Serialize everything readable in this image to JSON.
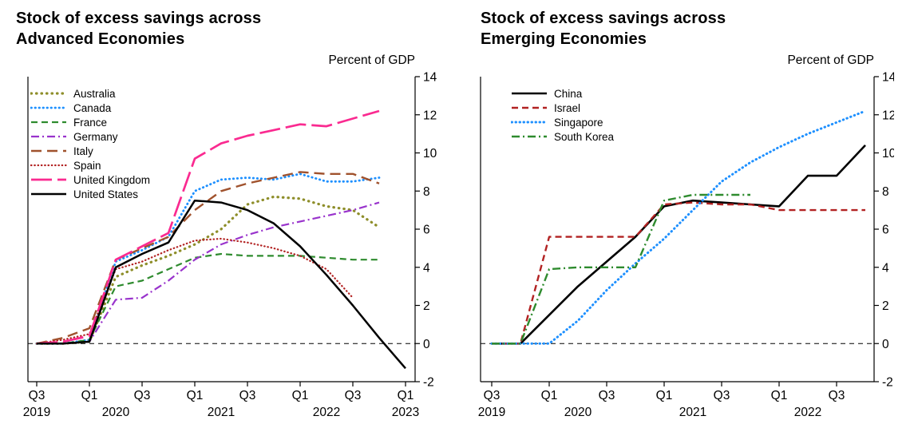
{
  "chart_data": [
    {
      "id": "advanced-economies",
      "type": "line",
      "title_line1": "Stock of excess savings across",
      "title_line2": "Advanced Economies",
      "y_axis_label": "Percent of GDP",
      "ylim": [
        -2,
        14
      ],
      "y_tick_step": 2,
      "grid": false,
      "legend_position": "top-left-inside",
      "zero_line": "dashed",
      "x_quarters": [
        "2019Q3",
        "2019Q4",
        "2020Q1",
        "2020Q2",
        "2020Q3",
        "2020Q4",
        "2021Q1",
        "2021Q2",
        "2021Q3",
        "2021Q4",
        "2022Q1",
        "2022Q2",
        "2022Q3",
        "2022Q4",
        "2023Q1"
      ],
      "x_ticks": [
        {
          "label": "Q3",
          "i": 0
        },
        {
          "label": "Q1",
          "i": 2
        },
        {
          "label": "Q3",
          "i": 4
        },
        {
          "label": "Q1",
          "i": 6
        },
        {
          "label": "Q3",
          "i": 8
        },
        {
          "label": "Q1",
          "i": 10
        },
        {
          "label": "Q3",
          "i": 12
        },
        {
          "label": "Q1",
          "i": 14
        }
      ],
      "year_ticks": [
        {
          "label": "2019",
          "i": 0
        },
        {
          "label": "2020",
          "i": 3
        },
        {
          "label": "2021",
          "i": 7
        },
        {
          "label": "2022",
          "i": 11
        },
        {
          "label": "2023",
          "i": 14
        }
      ],
      "series": [
        {
          "name": "Australia",
          "color": "#8e8e2a",
          "dash": "dotlarge",
          "width": 3.2,
          "start_index": 0,
          "values": [
            0,
            0,
            0.1,
            3.5,
            4.1,
            4.6,
            5.2,
            6.0,
            7.3,
            7.7,
            7.6,
            7.2,
            7.0,
            6.1
          ]
        },
        {
          "name": "Canada",
          "color": "#1e90ff",
          "dash": "dot",
          "width": 2.8,
          "start_index": 0,
          "values": [
            0,
            0,
            0.2,
            4.3,
            4.9,
            5.6,
            8.0,
            8.6,
            8.7,
            8.6,
            8.9,
            8.5,
            8.5,
            8.7
          ]
        },
        {
          "name": "France",
          "color": "#2e8b2e",
          "dash": "dash",
          "width": 2.2,
          "start_index": 0,
          "values": [
            0,
            0,
            0.2,
            3.0,
            3.3,
            3.9,
            4.5,
            4.7,
            4.6,
            4.6,
            4.6,
            4.5,
            4.4,
            4.4
          ]
        },
        {
          "name": "Germany",
          "color": "#9933cc",
          "dash": "dashdot",
          "width": 2.2,
          "start_index": 0,
          "values": [
            0,
            0,
            0.1,
            2.3,
            2.4,
            3.3,
            4.4,
            5.2,
            5.7,
            6.1,
            6.4,
            6.7,
            7.0,
            7.4
          ]
        },
        {
          "name": "Italy",
          "color": "#a0522d",
          "dash": "longdash",
          "width": 2.4,
          "start_index": 0,
          "values": [
            0,
            0.3,
            0.8,
            4.4,
            5.0,
            5.6,
            7.0,
            8.0,
            8.4,
            8.7,
            9.0,
            8.9,
            8.9,
            8.4
          ]
        },
        {
          "name": "Spain",
          "color": "#b22222",
          "dash": "dotfine",
          "width": 2.2,
          "start_index": 0,
          "values": [
            0,
            0.2,
            0.5,
            3.9,
            4.3,
            4.9,
            5.4,
            5.5,
            5.3,
            5.0,
            4.6,
            3.9,
            2.4
          ]
        },
        {
          "name": "United Kingdom",
          "color": "#fa2a90",
          "dash": "ukdash",
          "width": 2.7,
          "start_index": 0,
          "values": [
            0,
            0.1,
            0.4,
            4.4,
            5.1,
            5.8,
            9.7,
            10.5,
            10.9,
            11.2,
            11.5,
            11.4,
            11.8,
            12.2
          ]
        },
        {
          "name": "United States",
          "color": "#000000",
          "dash": "solid",
          "width": 2.5,
          "start_index": 0,
          "values": [
            0,
            0,
            0.1,
            4.0,
            4.7,
            5.3,
            7.5,
            7.4,
            7.0,
            6.3,
            5.1,
            3.6,
            2.0,
            0.3,
            -1.3
          ]
        }
      ]
    },
    {
      "id": "emerging-economies",
      "type": "line",
      "title_line1": "Stock of excess savings across",
      "title_line2": "Emerging Economies",
      "y_axis_label": "Percent of GDP",
      "ylim": [
        -2,
        14
      ],
      "y_tick_step": 2,
      "grid": false,
      "legend_position": "top-left-inside",
      "zero_line": "dashed",
      "x_quarters": [
        "2019Q3",
        "2019Q4",
        "2020Q1",
        "2020Q2",
        "2020Q3",
        "2020Q4",
        "2021Q1",
        "2021Q2",
        "2021Q3",
        "2021Q4",
        "2022Q1",
        "2022Q2",
        "2022Q3",
        "2022Q4"
      ],
      "x_ticks": [
        {
          "label": "Q3",
          "i": 0
        },
        {
          "label": "Q1",
          "i": 2
        },
        {
          "label": "Q3",
          "i": 4
        },
        {
          "label": "Q1",
          "i": 6
        },
        {
          "label": "Q3",
          "i": 8
        },
        {
          "label": "Q1",
          "i": 10
        },
        {
          "label": "Q3",
          "i": 12
        }
      ],
      "year_ticks": [
        {
          "label": "2019",
          "i": 0
        },
        {
          "label": "2020",
          "i": 3
        },
        {
          "label": "2021",
          "i": 7
        },
        {
          "label": "2022",
          "i": 11
        }
      ],
      "series": [
        {
          "name": "China",
          "color": "#000000",
          "dash": "solid",
          "width": 2.6,
          "start_index": 0,
          "values": [
            0,
            0,
            1.5,
            3.0,
            4.3,
            5.6,
            7.2,
            7.5,
            7.4,
            7.3,
            7.2,
            8.8,
            8.8,
            10.4
          ]
        },
        {
          "name": "Israel",
          "color": "#b22222",
          "dash": "dash",
          "width": 2.4,
          "start_index": 0,
          "values": [
            0,
            0,
            5.6,
            5.6,
            5.6,
            5.6,
            7.3,
            7.4,
            7.3,
            7.3,
            7.0,
            7.0,
            7.0,
            7.0
          ]
        },
        {
          "name": "Singapore",
          "color": "#1e90ff",
          "dash": "dot",
          "width": 3.0,
          "start_index": 0,
          "values": [
            0,
            0,
            0,
            1.2,
            2.8,
            4.2,
            5.5,
            7.0,
            8.5,
            9.5,
            10.3,
            11.0,
            11.6,
            12.2
          ]
        },
        {
          "name": "South Korea",
          "color": "#2e8b2e",
          "dash": "dashdot",
          "width": 2.4,
          "start_index": 0,
          "values": [
            0,
            0,
            3.9,
            4.0,
            4.0,
            4.0,
            7.5,
            7.8,
            7.8,
            7.8
          ]
        }
      ]
    }
  ]
}
